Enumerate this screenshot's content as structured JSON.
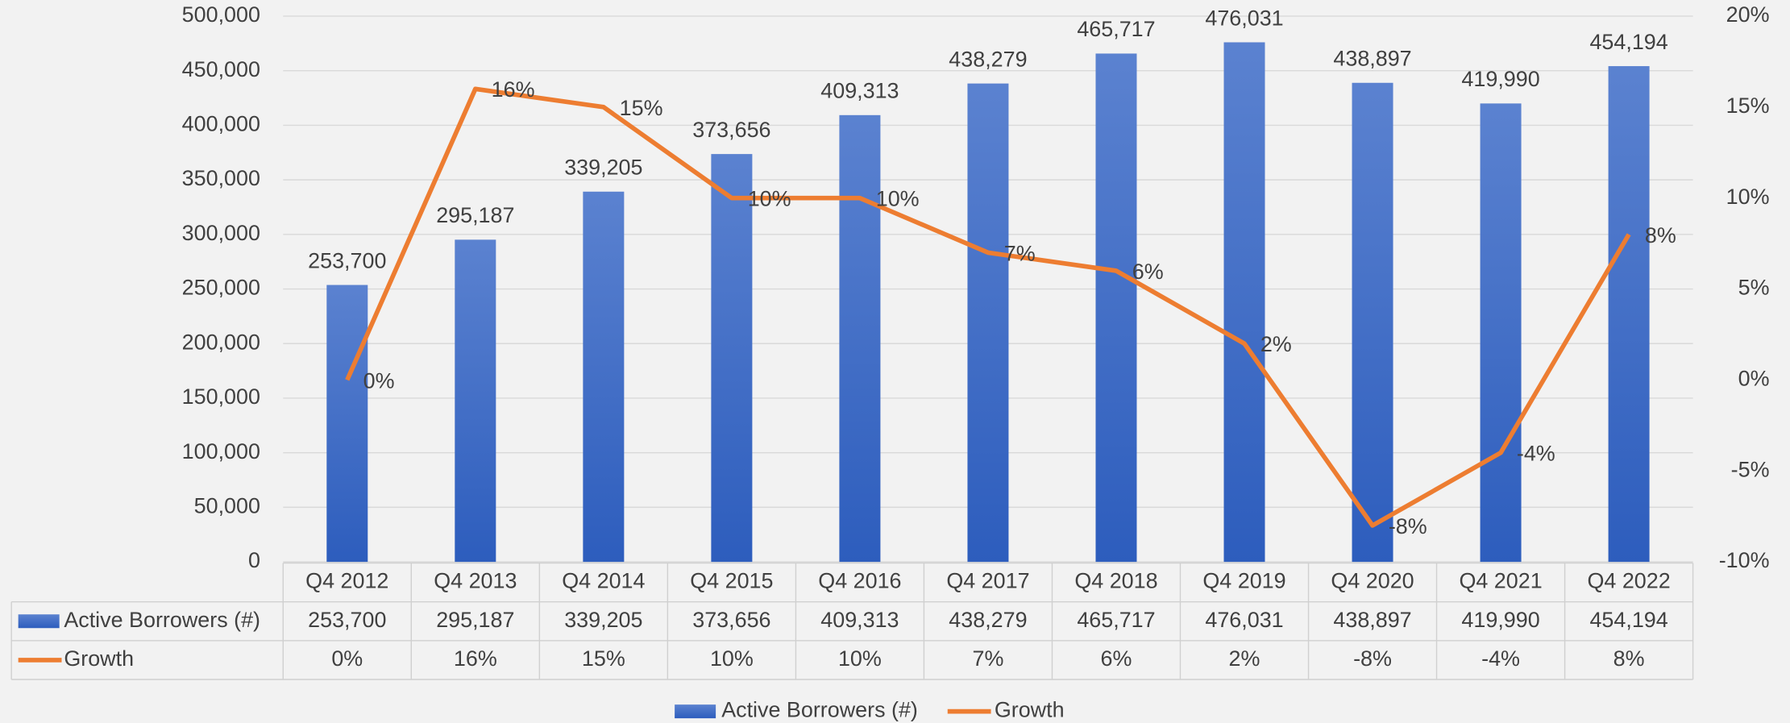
{
  "chart_data": {
    "type": "bar",
    "categories": [
      "Q4 2012",
      "Q4 2013",
      "Q4 2014",
      "Q4 2015",
      "Q4 2016",
      "Q4 2017",
      "Q4 2018",
      "Q4 2019",
      "Q4 2020",
      "Q4 2021",
      "Q4 2022"
    ],
    "series": [
      {
        "name": "Active Borrowers (#)",
        "type": "bar",
        "color": "#3a66c4",
        "values": [
          253700,
          295187,
          339205,
          373656,
          409313,
          438279,
          465717,
          476031,
          438897,
          419990,
          454194
        ],
        "value_labels": [
          "253,700",
          "295,187",
          "339,205",
          "373,656",
          "409,313",
          "438,279",
          "465,717",
          "476,031",
          "438,897",
          "419,990",
          "454,194"
        ]
      },
      {
        "name": "Growth",
        "type": "line",
        "axis": "y2",
        "color": "#ed7d31",
        "values": [
          0,
          16,
          15,
          10,
          10,
          7,
          6,
          2,
          -8,
          -4,
          8
        ],
        "value_labels": [
          "0%",
          "16%",
          "15%",
          "10%",
          "10%",
          "7%",
          "6%",
          "2%",
          "-8%",
          "-4%",
          "8%"
        ]
      }
    ],
    "ylim": [
      0,
      500000
    ],
    "yticks": [
      0,
      {
        "value": 50000,
        "label": "50,000"
      },
      {
        "value": 100000,
        "label": "100,000"
      },
      {
        "value": 150000,
        "label": "150,000"
      },
      {
        "value": 200000,
        "label": "200,000"
      },
      {
        "value": 250000,
        "label": "250,000"
      },
      {
        "value": 300000,
        "label": "300,000"
      },
      {
        "value": 350000,
        "label": "350,000"
      },
      {
        "value": 400000,
        "label": "400,000"
      },
      {
        "value": 450000,
        "label": "450,000"
      },
      {
        "value": 500000,
        "label": "500,000"
      }
    ],
    "y2lim": [
      -10,
      20
    ],
    "y2ticks": [
      {
        "value": -10,
        "label": "-10%"
      },
      {
        "value": -5,
        "label": "-5%"
      },
      {
        "value": 0,
        "label": "0%"
      },
      {
        "value": 5,
        "label": "5%"
      },
      {
        "value": 10,
        "label": "10%"
      },
      {
        "value": 15,
        "label": "15%"
      },
      {
        "value": 20,
        "label": "20%"
      }
    ],
    "grid": true,
    "legend": "bottom",
    "data_table": true
  }
}
